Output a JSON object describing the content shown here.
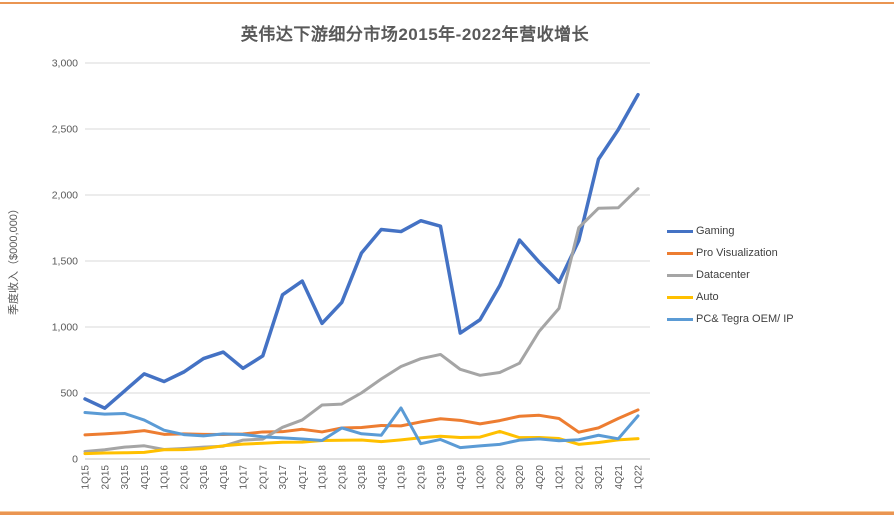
{
  "page": {
    "accent_color": "#EA9552",
    "background_color": "#FFFFFF"
  },
  "chart_data": {
    "type": "line",
    "title": "英伟达下游细分市场2015年-2022年营收增长",
    "xlabel": "",
    "ylabel": "季度收入（$000,000）",
    "ylim": [
      0,
      3000
    ],
    "y_tick_step": 500,
    "y_tick_labels": [
      "0",
      "500",
      "1,000",
      "1,500",
      "2,000",
      "2,500",
      "3,000"
    ],
    "grid": true,
    "legend_position": "right",
    "text_color": "#595959",
    "gridline_color": "#D9D9D9",
    "categories": [
      "1Q15",
      "2Q15",
      "3Q15",
      "4Q15",
      "1Q16",
      "2Q16",
      "3Q16",
      "4Q16",
      "1Q17",
      "2Q17",
      "3Q17",
      "4Q17",
      "1Q18",
      "2Q18",
      "3Q18",
      "4Q18",
      "1Q19",
      "2Q19",
      "3Q19",
      "4Q19",
      "1Q20",
      "2Q20",
      "3Q20",
      "4Q20",
      "1Q21",
      "2Q21",
      "3Q21",
      "4Q21",
      "1Q22"
    ],
    "series": [
      {
        "name": "Gaming",
        "color": "#4472C4",
        "values": [
          455,
          385,
          515,
          645,
          587,
          659,
          761,
          810,
          687,
          781,
          1244,
          1348,
          1027,
          1186,
          1561,
          1739,
          1723,
          1805,
          1764,
          954,
          1055,
          1313,
          1659,
          1491,
          1339,
          1654,
          2271,
          2495,
          2760
        ]
      },
      {
        "name": "Pro Visualization",
        "color": "#ED7D31",
        "values": [
          183,
          190,
          200,
          215,
          187,
          190,
          187,
          186,
          189,
          205,
          207,
          225,
          205,
          235,
          239,
          254,
          251,
          281,
          305,
          293,
          266,
          291,
          324,
          331,
          307,
          203,
          236,
          307,
          372
        ]
      },
      {
        "name": "Datacenter",
        "color": "#A5A5A5",
        "values": [
          57,
          70,
          90,
          100,
          72,
          80,
          90,
          97,
          143,
          151,
          240,
          296,
          409,
          416,
          501,
          606,
          701,
          760,
          792,
          679,
          634,
          655,
          726,
          968,
          1141,
          1752,
          1900,
          1903,
          2048
        ]
      },
      {
        "name": "Auto",
        "color": "#FFC000",
        "values": [
          41,
          45,
          47,
          50,
          70,
          71,
          79,
          100,
          113,
          119,
          127,
          128,
          140,
          142,
          144,
          132,
          145,
          161,
          172,
          163,
          166,
          209,
          162,
          163,
          155,
          111,
          125,
          145,
          154
        ]
      },
      {
        "name": "PC& Tegra OEM/ IP",
        "color": "#5B9BD5",
        "values": [
          352,
          340,
          345,
          295,
          218,
          185,
          175,
          190,
          186,
          168,
          160,
          152,
          140,
          235,
          191,
          180,
          387,
          116,
          148,
          86,
          99,
          111,
          143,
          152,
          138,
          146,
          180,
          153,
          327
        ]
      }
    ]
  }
}
